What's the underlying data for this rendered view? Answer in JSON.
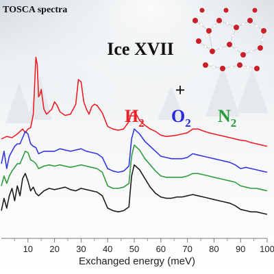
{
  "chart_data": {
    "type": "line",
    "title": "Ice XVII",
    "corner_label": "TOSCA spectra",
    "xlabel": "Exchanged energy (meV)",
    "ylabel": "",
    "xlim": [
      0,
      100
    ],
    "ylim": [
      0,
      7.2
    ],
    "xticks": [
      10,
      20,
      30,
      40,
      50,
      60,
      70,
      80,
      90,
      100
    ],
    "plus_sign": "+",
    "gas_labels": [
      {
        "base": "H",
        "sub": "2",
        "color": "#e8252a"
      },
      {
        "base": "O",
        "sub": "2",
        "color": "#2a2ad8"
      },
      {
        "base": "N",
        "sub": "2",
        "color": "#2a9a3a"
      }
    ],
    "series": [
      {
        "color": "#ee1c25",
        "x": [
          0,
          2,
          4,
          6,
          8,
          9,
          10,
          11,
          12,
          13,
          13.5,
          14,
          14.5,
          15,
          16,
          17,
          18,
          19,
          20,
          21,
          22,
          24,
          26,
          28,
          29,
          30,
          31,
          32,
          33,
          34,
          35,
          36,
          38,
          40,
          42,
          44,
          46,
          48,
          49,
          50,
          51,
          52,
          54,
          56,
          58,
          60,
          62,
          64,
          66,
          68,
          70,
          72,
          74,
          76,
          78,
          80,
          82,
          84,
          86,
          88,
          90,
          92,
          94,
          96,
          98,
          100
        ],
        "y": [
          3.8,
          3.9,
          3.85,
          4.0,
          4.2,
          4.05,
          4.2,
          4.25,
          4.8,
          7.1,
          6.8,
          5.5,
          5.6,
          5.8,
          5.0,
          4.8,
          4.9,
          5.0,
          5.3,
          5.15,
          4.9,
          4.75,
          4.8,
          5.2,
          6.2,
          6.1,
          5.3,
          5.0,
          4.8,
          5.1,
          5.2,
          5.15,
          4.85,
          4.3,
          4.2,
          4.15,
          4.2,
          4.5,
          4.85,
          4.9,
          4.75,
          4.55,
          4.35,
          4.2,
          4.1,
          3.95,
          3.9,
          3.92,
          3.95,
          4.0,
          4.05,
          4.2,
          4.2,
          4.12,
          4.05,
          4.0,
          3.95,
          3.9,
          3.85,
          3.8,
          3.75,
          3.72,
          3.65,
          3.6,
          3.55,
          3.5
        ]
      },
      {
        "color": "#3434e0",
        "x": [
          0,
          1,
          2,
          3,
          4,
          5,
          6,
          7,
          8,
          9,
          10,
          11,
          12,
          13,
          14,
          16,
          18,
          20,
          22,
          24,
          26,
          28,
          30,
          32,
          34,
          36,
          38,
          40,
          42,
          44,
          46,
          48,
          49,
          50,
          52,
          54,
          56,
          58,
          60,
          62,
          64,
          66,
          68,
          70,
          72,
          74,
          76,
          78,
          80,
          82,
          84,
          86,
          88,
          90,
          92,
          94,
          96,
          98,
          100
        ],
        "y": [
          2.8,
          3.3,
          2.6,
          3.1,
          3.3,
          3.5,
          3.6,
          3.6,
          3.85,
          4.1,
          4.0,
          3.6,
          3.5,
          3.45,
          3.2,
          3.3,
          3.3,
          3.3,
          3.4,
          3.35,
          3.3,
          3.35,
          3.4,
          3.3,
          3.25,
          3.2,
          3.05,
          2.6,
          2.5,
          2.45,
          2.5,
          2.7,
          3.8,
          4.2,
          4.0,
          3.7,
          3.5,
          3.3,
          3.1,
          3.05,
          3.0,
          3.0,
          3.0,
          3.05,
          3.2,
          3.15,
          3.1,
          3.05,
          3.0,
          2.95,
          2.9,
          2.85,
          2.75,
          2.6,
          2.65,
          2.6,
          2.55,
          2.5,
          2.45
        ]
      },
      {
        "color": "#2e9b3a",
        "x": [
          0,
          1,
          2,
          3,
          4,
          5,
          6,
          7,
          8,
          9,
          10,
          11,
          12,
          13,
          14,
          16,
          18,
          20,
          22,
          24,
          26,
          28,
          30,
          32,
          34,
          36,
          38,
          40,
          42,
          44,
          46,
          48,
          49,
          50,
          52,
          54,
          56,
          58,
          60,
          62,
          64,
          66,
          68,
          70,
          72,
          74,
          76,
          78,
          80,
          82,
          84,
          86,
          88,
          90,
          92,
          94,
          96,
          98,
          100
        ],
        "y": [
          1.9,
          2.3,
          2.0,
          2.3,
          2.5,
          2.65,
          2.8,
          2.8,
          3.05,
          3.3,
          3.25,
          2.95,
          2.9,
          2.8,
          2.6,
          2.7,
          2.75,
          2.7,
          2.75,
          2.7,
          2.65,
          2.7,
          2.75,
          2.7,
          2.65,
          2.6,
          2.45,
          1.9,
          1.8,
          1.8,
          1.85,
          2.0,
          3.1,
          3.55,
          3.35,
          3.0,
          2.75,
          2.5,
          2.3,
          2.25,
          2.25,
          2.25,
          2.25,
          2.3,
          2.4,
          2.4,
          2.35,
          2.3,
          2.25,
          2.2,
          2.15,
          2.1,
          2.05,
          1.9,
          1.85,
          1.8,
          1.8,
          1.75,
          1.7
        ]
      },
      {
        "color": "#1a1a1a",
        "x": [
          0,
          1,
          2,
          3,
          4,
          5,
          6,
          7,
          8,
          9,
          10,
          11,
          12,
          13,
          14,
          16,
          18,
          20,
          22,
          24,
          26,
          28,
          30,
          32,
          34,
          36,
          38,
          40,
          42,
          44,
          46,
          48,
          49,
          50,
          52,
          54,
          56,
          58,
          60,
          62,
          64,
          66,
          68,
          70,
          72,
          74,
          76,
          78,
          80,
          82,
          84,
          86,
          88,
          90,
          92,
          94,
          96,
          98,
          100
        ],
        "y": [
          0.9,
          1.4,
          1.0,
          1.5,
          1.8,
          1.3,
          1.9,
          1.5,
          2.2,
          2.4,
          2.1,
          1.7,
          1.85,
          1.6,
          1.5,
          1.7,
          1.8,
          1.75,
          1.8,
          1.85,
          1.75,
          1.7,
          1.8,
          1.75,
          1.7,
          1.65,
          1.5,
          1.0,
          0.9,
          0.85,
          0.9,
          1.05,
          2.3,
          2.75,
          2.55,
          2.2,
          1.85,
          1.6,
          1.45,
          1.4,
          1.4,
          1.45,
          1.45,
          1.5,
          1.55,
          1.5,
          1.45,
          1.4,
          1.35,
          1.3,
          1.25,
          1.2,
          1.1,
          0.95,
          0.9,
          0.85,
          0.85,
          0.8,
          0.75
        ]
      }
    ]
  }
}
